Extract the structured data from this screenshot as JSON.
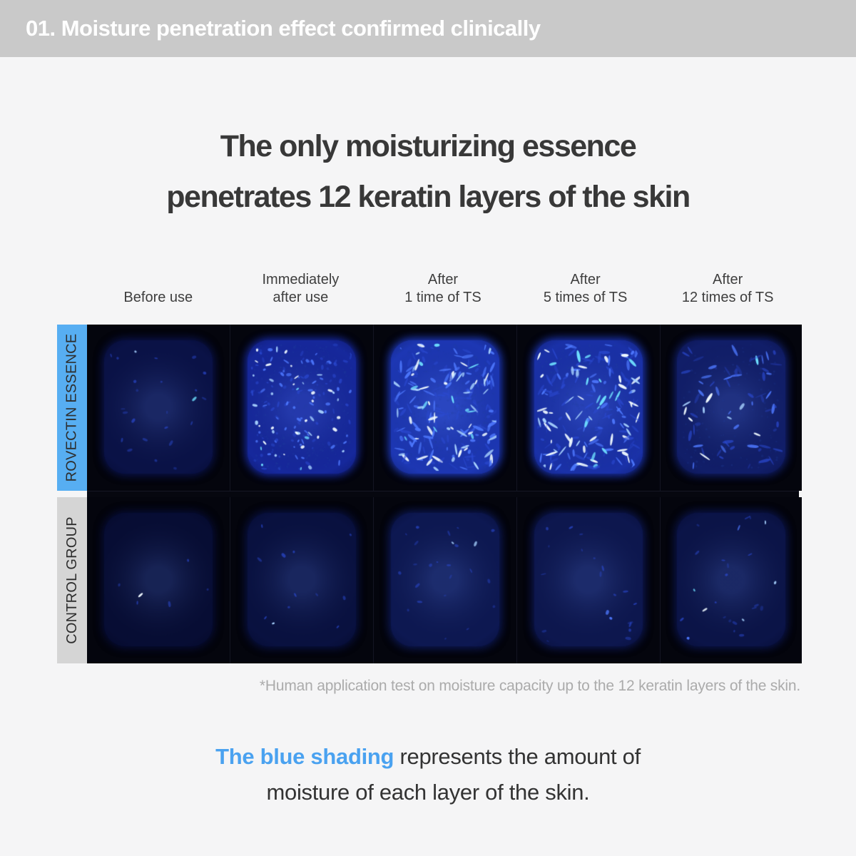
{
  "header": {
    "title": "01. Moisture penetration effect confirmed clinically"
  },
  "title": {
    "line1": "The only moisturizing essence",
    "line2": "penetrates 12 keratin layers of the skin"
  },
  "table": {
    "column_headers": [
      {
        "line1": "",
        "line2": "Before use"
      },
      {
        "line1": "Immediately",
        "line2": "after use"
      },
      {
        "line1": "After",
        "line2": "1 time of TS"
      },
      {
        "line1": "After",
        "line2": "5 times of TS"
      },
      {
        "line1": "After",
        "line2": "12 times of TS"
      }
    ],
    "rows": [
      {
        "label": "ROVECTIN ESSENCE",
        "label_bg": "#57aef2",
        "cells": [
          {
            "base": "#0a1247",
            "speckles": 24,
            "bright": 0.15,
            "streaky": false,
            "seed": 101
          },
          {
            "base": "#16289c",
            "speckles": 175,
            "bright": 0.55,
            "streaky": false,
            "seed": 202
          },
          {
            "base": "#1d37b4",
            "speckles": 215,
            "bright": 0.6,
            "streaky": true,
            "seed": 303
          },
          {
            "base": "#1a31a8",
            "speckles": 195,
            "bright": 0.6,
            "streaky": true,
            "seed": 404
          },
          {
            "base": "#111e69",
            "speckles": 70,
            "bright": 0.5,
            "streaky": true,
            "seed": 505
          }
        ]
      },
      {
        "label": "CONTROL GROUP",
        "label_bg": "#d5d5d5",
        "cells": [
          {
            "base": "#070d34",
            "speckles": 6,
            "bright": 0.05,
            "streaky": false,
            "seed": 606
          },
          {
            "base": "#091140",
            "speckles": 12,
            "bright": 0.1,
            "streaky": false,
            "seed": 707
          },
          {
            "base": "#0d1852",
            "speckles": 24,
            "bright": 0.08,
            "streaky": false,
            "seed": 808
          },
          {
            "base": "#0d174f",
            "speckles": 20,
            "bright": 0.08,
            "streaky": false,
            "seed": 909
          },
          {
            "base": "#0b1448",
            "speckles": 26,
            "bright": 0.3,
            "streaky": false,
            "seed": 1010
          }
        ]
      }
    ]
  },
  "footnote": "*Human application test on moisture capacity up to the 12 keratin layers of the skin.",
  "caption": {
    "highlight": "The blue shading",
    "line1_rest": " represents the amount of",
    "line2": "moisture of each layer of the skin.",
    "highlight_color": "#4aa2f0"
  },
  "colors": {
    "header_bar": "#c9c9c9",
    "page_bg": "#f5f5f6",
    "accent_blue": "#4aa2f0",
    "row_label_blue": "#57aef2",
    "row_label_gray": "#d5d5d5",
    "grid_bg": "#04050d"
  }
}
